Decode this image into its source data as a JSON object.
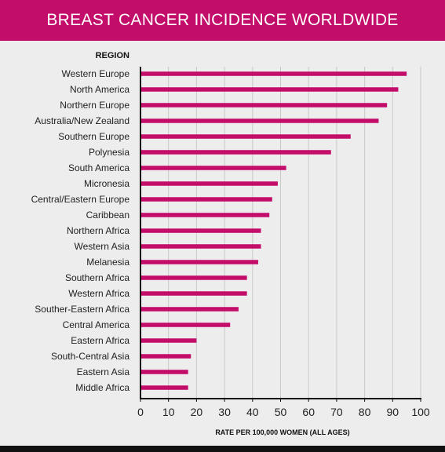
{
  "header": {
    "title": "BREAST CANCER INCIDENCE WORLDWIDE"
  },
  "chart_data": {
    "type": "bar",
    "orientation": "horizontal",
    "title": "BREAST CANCER INCIDENCE WORLDWIDE",
    "ylabel": "REGION",
    "xlabel": "RATE PER 100,000 WOMEN (ALL AGES)",
    "xlim": [
      0,
      100
    ],
    "xticks": [
      0,
      10,
      20,
      30,
      40,
      50,
      60,
      70,
      80,
      90,
      100
    ],
    "grid": "vertical",
    "bar_color": "#c30d6b",
    "categories": [
      "Western Europe",
      "North America",
      "Northern Europe",
      "Australia/New Zealand",
      "Southern Europe",
      "Polynesia",
      "South America",
      "Micronesia",
      "Central/Eastern Europe",
      "Caribbean",
      "Northern Africa",
      "Western Asia",
      "Melanesia",
      "Southern Africa",
      "Western Africa",
      "Souther-Eastern Africa",
      "Central America",
      "Eastern Africa",
      "South-Central Asia",
      "Eastern Asia",
      "Middle Africa"
    ],
    "values": [
      95,
      92,
      88,
      85,
      75,
      68,
      52,
      49,
      47,
      46,
      43,
      43,
      42,
      38,
      38,
      35,
      32,
      20,
      18,
      17,
      17
    ]
  }
}
